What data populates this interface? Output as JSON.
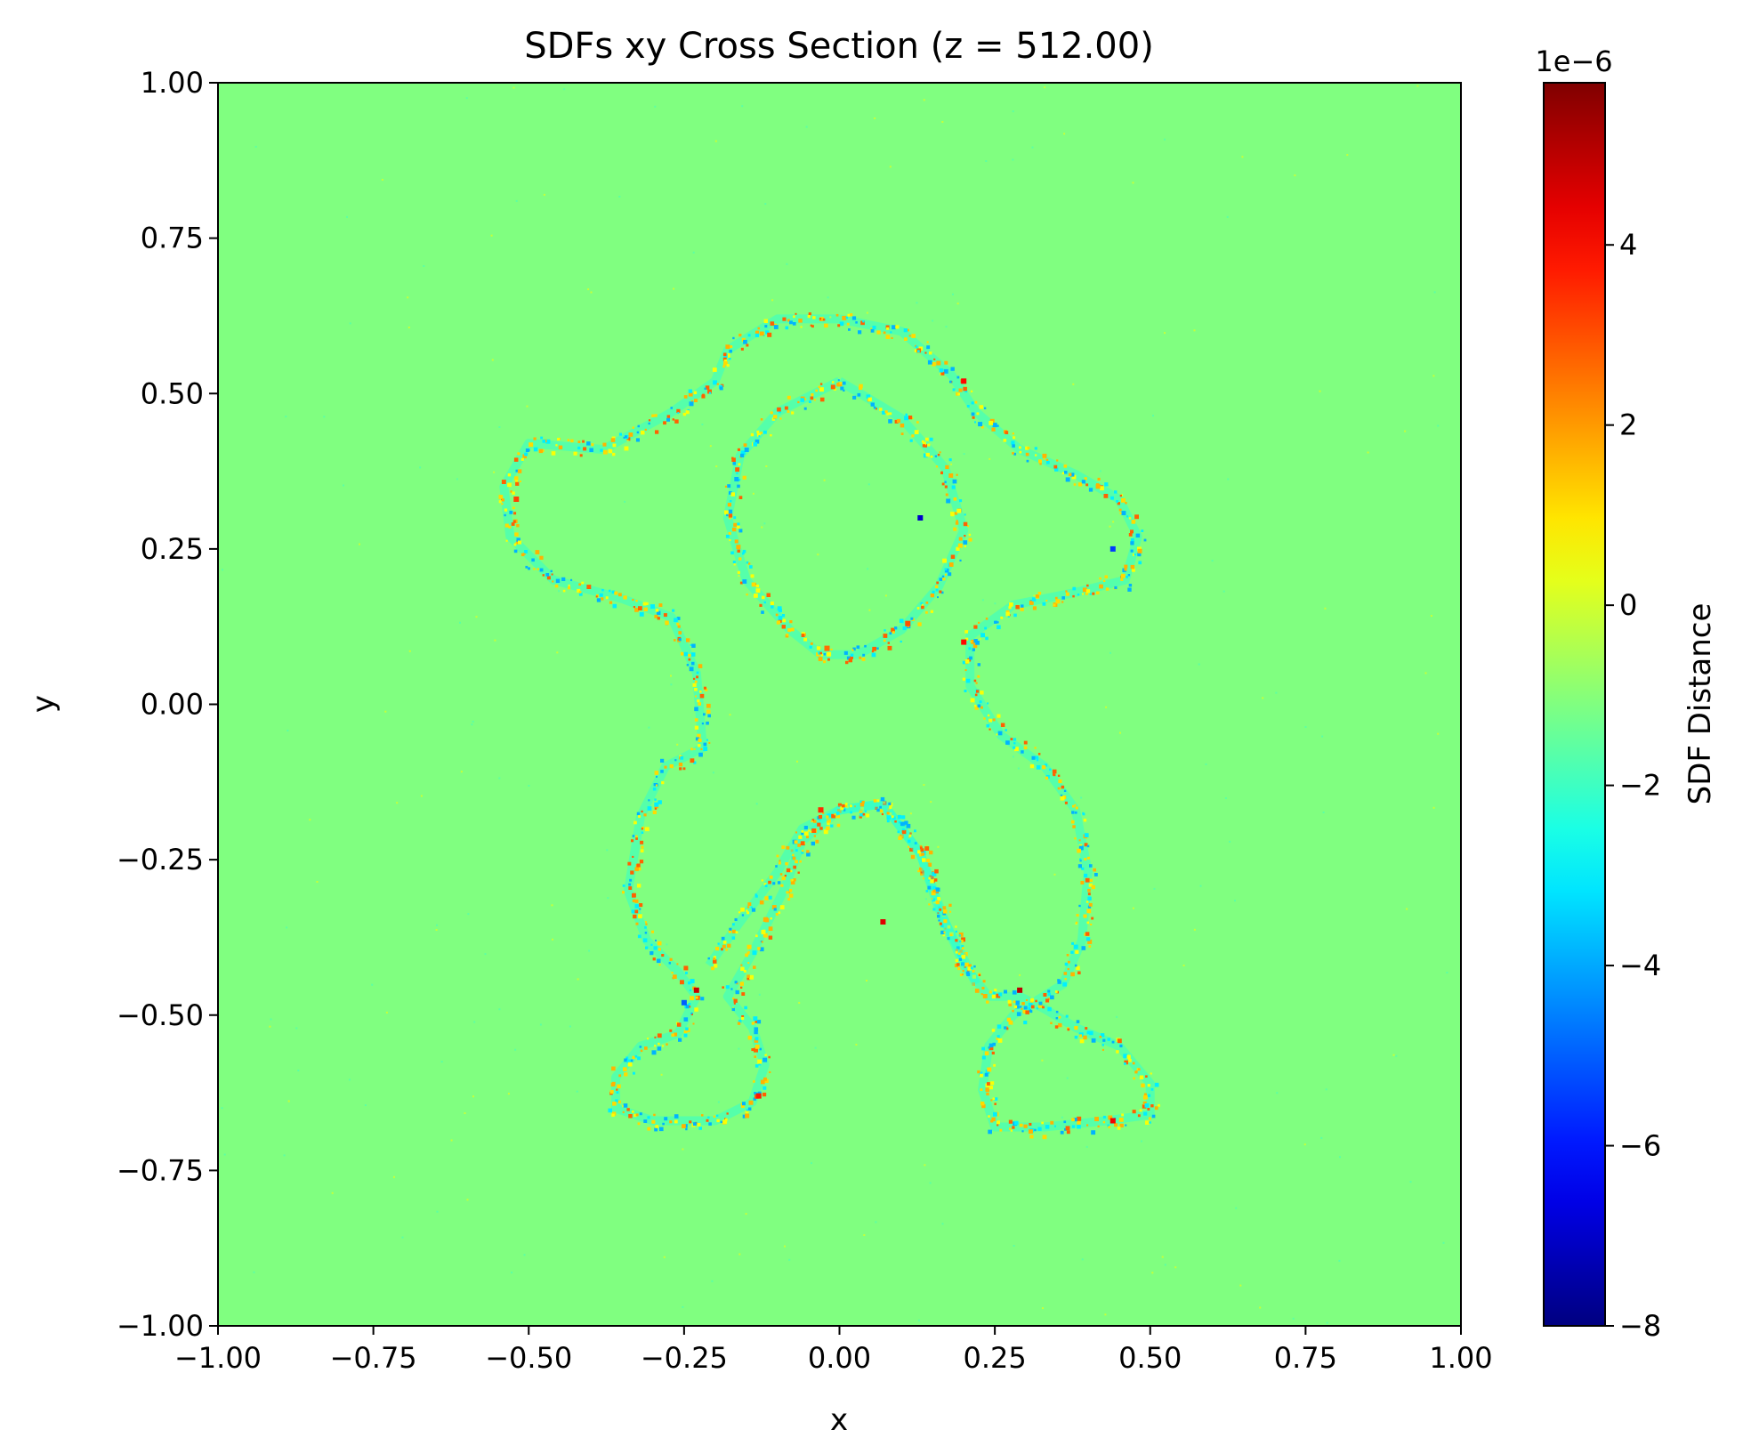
{
  "chart_data": {
    "type": "heatmap",
    "title": "SDFs xy Cross Section (z = 512.00)",
    "xlabel": "x",
    "ylabel": "y",
    "xlim": [
      -1.0,
      1.0
    ],
    "ylim": [
      -1.0,
      1.0
    ],
    "x_ticks": [
      -1.0,
      -0.75,
      -0.5,
      -0.25,
      0.0,
      0.25,
      0.5,
      0.75,
      1.0
    ],
    "x_tick_labels": [
      "−1.00",
      "−0.75",
      "−0.50",
      "−0.25",
      "0.00",
      "0.25",
      "0.50",
      "0.75",
      "1.00"
    ],
    "y_ticks": [
      -1.0,
      -0.75,
      -0.5,
      -0.25,
      0.0,
      0.25,
      0.5,
      0.75,
      1.0
    ],
    "y_tick_labels": [
      "−1.00",
      "−0.75",
      "−0.50",
      "−0.25",
      "0.00",
      "0.25",
      "0.50",
      "0.75",
      "1.00"
    ],
    "colormap": "jet",
    "background_value": 0.5,
    "colorbar": {
      "label": "SDF Distance",
      "scale_label": "1e−6",
      "vmin": -8.0,
      "vmax": 5.8,
      "ticks": [
        -8,
        -6,
        -4,
        -2,
        0,
        2,
        4
      ],
      "tick_labels": [
        "−8",
        "−6",
        "−4",
        "−2",
        "0",
        "2",
        "4"
      ]
    },
    "grid": false,
    "outline_contour": {
      "description_units": "data coordinates (x, y)",
      "points": [
        [
          0.0,
          0.62
        ],
        [
          -0.1,
          0.62
        ],
        [
          -0.18,
          0.57
        ],
        [
          -0.2,
          0.52
        ],
        [
          -0.27,
          0.47
        ],
        [
          -0.38,
          0.41
        ],
        [
          -0.5,
          0.42
        ],
        [
          -0.54,
          0.35
        ],
        [
          -0.53,
          0.27
        ],
        [
          -0.46,
          0.2
        ],
        [
          -0.35,
          0.17
        ],
        [
          -0.27,
          0.14
        ],
        [
          -0.23,
          0.05
        ],
        [
          -0.22,
          -0.07
        ],
        [
          -0.28,
          -0.1
        ],
        [
          -0.32,
          -0.18
        ],
        [
          -0.34,
          -0.3
        ],
        [
          -0.31,
          -0.38
        ],
        [
          -0.26,
          -0.43
        ],
        [
          -0.23,
          -0.47
        ],
        [
          -0.26,
          -0.53
        ],
        [
          -0.32,
          -0.55
        ],
        [
          -0.36,
          -0.6
        ],
        [
          -0.36,
          -0.65
        ],
        [
          -0.3,
          -0.67
        ],
        [
          -0.2,
          -0.67
        ],
        [
          -0.14,
          -0.64
        ],
        [
          -0.12,
          -0.58
        ],
        [
          -0.14,
          -0.52
        ],
        [
          -0.18,
          -0.47
        ],
        [
          -0.14,
          -0.4
        ],
        [
          -0.09,
          -0.3
        ],
        [
          -0.06,
          -0.22
        ],
        [
          0.0,
          -0.17
        ],
        [
          0.07,
          -0.16
        ],
        [
          0.13,
          -0.24
        ],
        [
          0.17,
          -0.35
        ],
        [
          0.2,
          -0.42
        ],
        [
          0.24,
          -0.47
        ],
        [
          0.29,
          -0.47
        ],
        [
          0.33,
          -0.49
        ],
        [
          0.38,
          -0.52
        ],
        [
          0.45,
          -0.55
        ],
        [
          0.5,
          -0.61
        ],
        [
          0.5,
          -0.66
        ],
        [
          0.43,
          -0.67
        ],
        [
          0.33,
          -0.68
        ],
        [
          0.25,
          -0.68
        ],
        [
          0.23,
          -0.62
        ],
        [
          0.24,
          -0.55
        ],
        [
          0.28,
          -0.5
        ],
        [
          0.36,
          -0.45
        ],
        [
          0.39,
          -0.38
        ],
        [
          0.4,
          -0.27
        ],
        [
          0.38,
          -0.17
        ],
        [
          0.33,
          -0.1
        ],
        [
          0.26,
          -0.05
        ],
        [
          0.21,
          0.03
        ],
        [
          0.21,
          0.11
        ],
        [
          0.28,
          0.16
        ],
        [
          0.38,
          0.18
        ],
        [
          0.46,
          0.2
        ],
        [
          0.48,
          0.27
        ],
        [
          0.45,
          0.33
        ],
        [
          0.38,
          0.37
        ],
        [
          0.29,
          0.41
        ],
        [
          0.22,
          0.47
        ],
        [
          0.18,
          0.53
        ],
        [
          0.1,
          0.6
        ],
        [
          0.0,
          0.62
        ]
      ]
    },
    "inner_contours": [
      {
        "name": "head",
        "points": [
          [
            0.0,
            0.52
          ],
          [
            -0.1,
            0.47
          ],
          [
            -0.16,
            0.4
          ],
          [
            -0.18,
            0.3
          ],
          [
            -0.15,
            0.2
          ],
          [
            -0.08,
            0.12
          ],
          [
            -0.03,
            0.08
          ],
          [
            0.03,
            0.08
          ],
          [
            0.1,
            0.12
          ],
          [
            0.16,
            0.19
          ],
          [
            0.2,
            0.28
          ],
          [
            0.17,
            0.38
          ],
          [
            0.1,
            0.46
          ],
          [
            0.0,
            0.52
          ]
        ]
      },
      {
        "name": "legs-arch",
        "points": [
          [
            -0.21,
            -0.42
          ],
          [
            -0.16,
            -0.35
          ],
          [
            -0.1,
            -0.27
          ],
          [
            -0.06,
            -0.2
          ],
          [
            0.0,
            -0.17
          ],
          [
            0.07,
            -0.16
          ],
          [
            0.13,
            -0.24
          ],
          [
            0.16,
            -0.33
          ],
          [
            0.22,
            -0.45
          ]
        ]
      }
    ],
    "hotspots": [
      {
        "x": -0.52,
        "y": 0.33,
        "value": 3.2
      },
      {
        "x": -0.25,
        "y": -0.48,
        "value": -5.0
      },
      {
        "x": -0.23,
        "y": -0.46,
        "value": 4.8
      },
      {
        "x": 0.13,
        "y": 0.3,
        "value": -7.0
      },
      {
        "x": 0.2,
        "y": 0.52,
        "value": 4.0
      },
      {
        "x": 0.44,
        "y": 0.25,
        "value": -5.5
      },
      {
        "x": 0.29,
        "y": -0.46,
        "value": 5.0
      },
      {
        "x": 0.44,
        "y": -0.67,
        "value": 4.2
      },
      {
        "x": 0.07,
        "y": -0.35,
        "value": 4.5
      },
      {
        "x": -0.03,
        "y": -0.17,
        "value": 3.5
      },
      {
        "x": 0.2,
        "y": 0.1,
        "value": 4.0
      },
      {
        "x": -0.13,
        "y": -0.63,
        "value": 3.8
      },
      {
        "x": 0.11,
        "y": 0.13,
        "value": 3.0
      },
      {
        "x": -0.02,
        "y": 0.09,
        "value": 2.6
      }
    ]
  }
}
